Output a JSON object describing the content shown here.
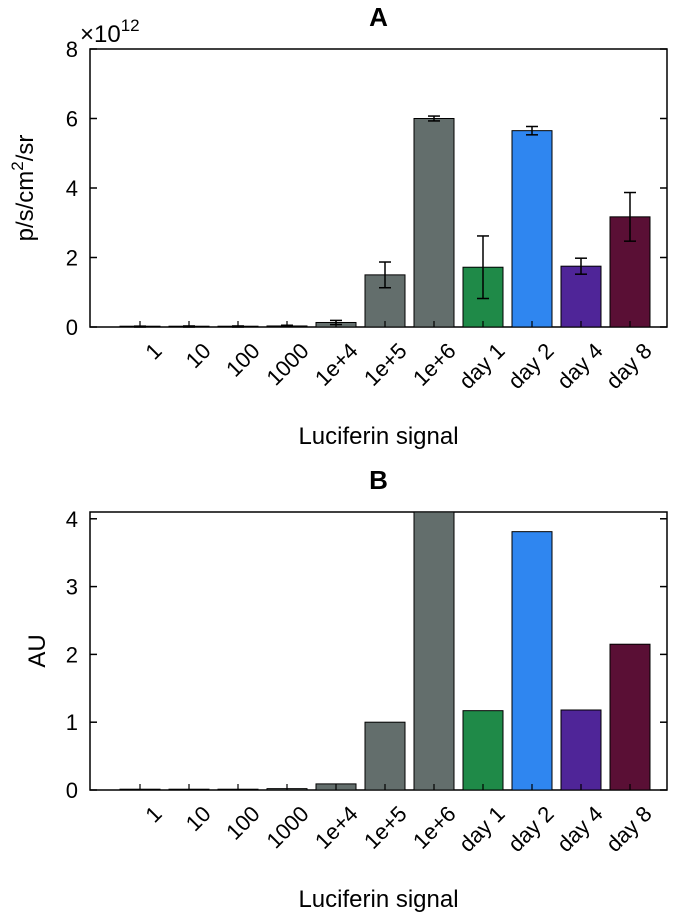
{
  "chart_data": [
    {
      "type": "bar",
      "title": "A",
      "xlabel": "Luciferin signal",
      "ylabel_base": "p/s/cm",
      "ylabel_sup": "2",
      "ylabel_tail": "/sr",
      "ylabel": "p/s/cm^2/sr",
      "exponent_prefix": "×10",
      "exponent_sup": "12",
      "ylim": [
        0,
        8
      ],
      "yticks": [
        "0",
        "2",
        "4",
        "6",
        "8"
      ],
      "categories": [
        "1",
        "10",
        "100",
        "1000",
        "1e+4",
        "1e+5",
        "1e+6",
        "day 1",
        "day 2",
        "day 4",
        "day 8"
      ],
      "values": [
        0.005,
        0.01,
        0.01,
        0.03,
        0.13,
        1.5,
        6.0,
        1.72,
        5.65,
        1.75,
        3.17
      ],
      "errors": [
        0.02,
        0.02,
        0.02,
        0.02,
        0.06,
        0.37,
        0.07,
        0.9,
        0.12,
        0.23,
        0.7
      ],
      "colors": [
        "#636e6c",
        "#636e6c",
        "#636e6c",
        "#636e6c",
        "#636e6c",
        "#636e6c",
        "#636e6c",
        "#1f8a48",
        "#2f86f0",
        "#4f2598",
        "#5a0f35"
      ]
    },
    {
      "type": "bar",
      "title": "B",
      "xlabel": "Luciferin signal",
      "ylabel": "AU",
      "ylim": [
        0,
        4.1
      ],
      "yticks": [
        "0",
        "1",
        "2",
        "3",
        "4"
      ],
      "categories": [
        "1",
        "10",
        "100",
        "1000",
        "1e+4",
        "1e+5",
        "1e+6",
        "day 1",
        "day 2",
        "day 4",
        "day 8"
      ],
      "values": [
        0.003,
        0.006,
        0.006,
        0.02,
        0.09,
        1.0,
        4.1,
        1.17,
        3.81,
        1.18,
        2.15
      ],
      "colors": [
        "#636e6c",
        "#636e6c",
        "#636e6c",
        "#636e6c",
        "#636e6c",
        "#636e6c",
        "#636e6c",
        "#1f8a48",
        "#2f86f0",
        "#4f2598",
        "#5a0f35"
      ]
    }
  ]
}
